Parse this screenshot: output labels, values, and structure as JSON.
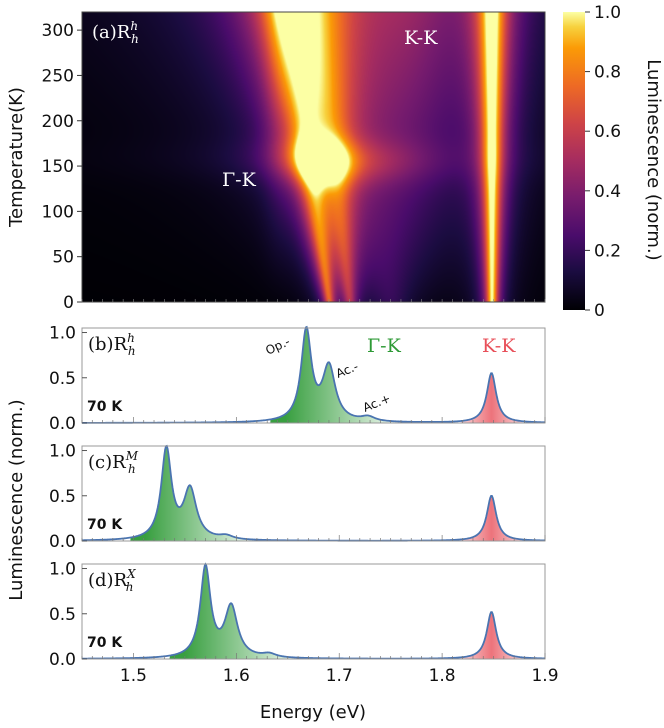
{
  "chart_data": [
    {
      "type": "heatmap",
      "panel": "(a)",
      "sample": "R",
      "sample_sub": "h",
      "sample_sup": "h",
      "ylabel": "Temperature(K)",
      "xlim": [
        1.45,
        1.9
      ],
      "ylim": [
        0,
        320
      ],
      "yticks": [
        0,
        50,
        100,
        150,
        200,
        250,
        300
      ],
      "colorbar": {
        "label": "Luminescence (norm.)",
        "range": [
          0,
          1
        ],
        "ticks": [
          "0",
          "0.2",
          "0.4",
          "0.6",
          "0.8",
          "1.0"
        ]
      },
      "annotations": [
        "Γ-K",
        "K-K"
      ],
      "peaks": [
        {
          "x0": 1.69,
          "xslope": -0.000125,
          "width": 0.0055,
          "amp": 0.85
        },
        {
          "x0": 1.71,
          "xslope": -9e-05,
          "width": 0.0065,
          "amp": 0.6
        },
        {
          "x0": 1.75,
          "xslope": -0.0001,
          "width": 0.02,
          "amp": 0.22
        },
        {
          "x0": 1.848,
          "xslope": 0.0,
          "width": 0.006,
          "amp": 1.0
        }
      ]
    },
    {
      "type": "area",
      "panel": "(b)",
      "sample": "R",
      "sample_sub": "h",
      "sample_sup": "h",
      "temperature_label": "70 K",
      "ylim": [
        0,
        1.05
      ],
      "yticks": [
        "0.0",
        "0.5",
        "1.0"
      ],
      "region_labels": [
        "Γ-K",
        "K-K"
      ],
      "peak_labels": [
        "Op.-",
        "Ac.-",
        "Ac.+"
      ],
      "peaks": [
        {
          "center": 1.668,
          "amp": 1.0,
          "width": 0.006
        },
        {
          "center": 1.69,
          "amp": 0.6,
          "width": 0.0075
        },
        {
          "center": 1.728,
          "amp": 0.05,
          "width": 0.008
        },
        {
          "center": 1.848,
          "amp": 0.55,
          "width": 0.0055
        }
      ]
    },
    {
      "type": "area",
      "panel": "(c)",
      "sample": "R",
      "sample_sub": "h",
      "sample_sup": "M",
      "temperature_label": "70 K",
      "ylim": [
        0,
        1.05
      ],
      "yticks": [
        "0.0",
        "0.5",
        "1.0"
      ],
      "peaks": [
        {
          "center": 1.532,
          "amp": 1.0,
          "width": 0.006
        },
        {
          "center": 1.555,
          "amp": 0.55,
          "width": 0.0075
        },
        {
          "center": 1.59,
          "amp": 0.04,
          "width": 0.008
        },
        {
          "center": 1.848,
          "amp": 0.5,
          "width": 0.0055
        }
      ]
    },
    {
      "type": "area",
      "panel": "(d)",
      "sample": "R",
      "sample_sub": "h",
      "sample_sup": "X",
      "temperature_label": "70 K",
      "ylim": [
        0,
        1.05
      ],
      "yticks": [
        "0.0",
        "0.5",
        "1.0"
      ],
      "xlabel": "Energy (eV)",
      "xlim": [
        1.45,
        1.9
      ],
      "xticks": [
        "1.5",
        "1.6",
        "1.7",
        "1.8",
        "1.9"
      ],
      "peaks": [
        {
          "center": 1.57,
          "amp": 1.0,
          "width": 0.006
        },
        {
          "center": 1.595,
          "amp": 0.56,
          "width": 0.0075
        },
        {
          "center": 1.632,
          "amp": 0.04,
          "width": 0.008
        },
        {
          "center": 1.848,
          "amp": 0.52,
          "width": 0.0055
        }
      ]
    }
  ],
  "shared_ylabel": "Luminescence (norm.)",
  "colors": {
    "gamma_k": "#2e9a36",
    "k_k": "#e8505a",
    "line": "#4a74b0"
  }
}
